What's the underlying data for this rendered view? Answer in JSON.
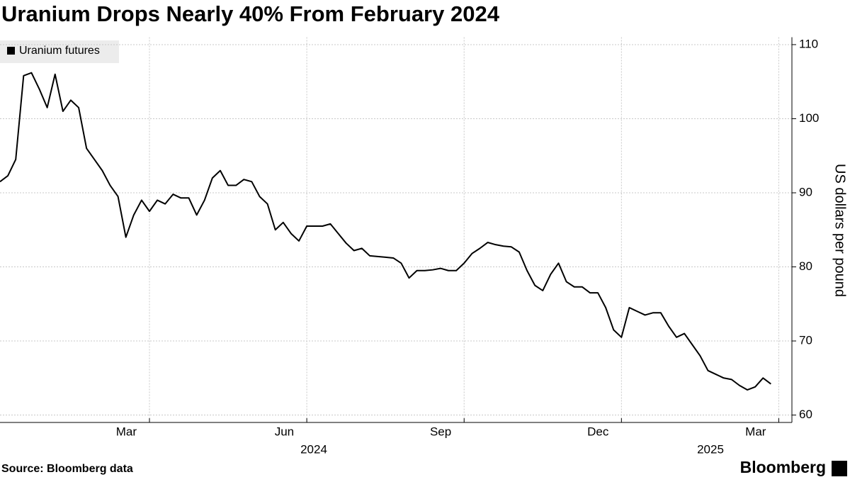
{
  "chart_data": {
    "type": "line",
    "title": "Uranium Drops Nearly 40% From February 2024",
    "source": "Source: Bloomberg data",
    "brand": "Bloomberg",
    "y_label": "US dollars per pound",
    "legend_position": "top-left",
    "grid": true,
    "xlim": [
      0,
      99.5
    ],
    "xticks": [
      {
        "value": 19,
        "label": "Mar"
      },
      {
        "value": 39,
        "label": "Jun"
      },
      {
        "value": 59,
        "label": "Sep"
      },
      {
        "value": 79,
        "label": "Dec"
      },
      {
        "value": 99,
        "label": "Mar"
      }
    ],
    "year_labels": [
      "2024",
      "2025"
    ],
    "ylim": [
      59,
      111
    ],
    "yticks": [
      60,
      70,
      80,
      90,
      100,
      110
    ],
    "series": [
      {
        "name": "Uranium futures",
        "color": "#000000",
        "values": [
          91.5,
          92.3,
          94.5,
          105.8,
          106.2,
          104,
          101.5,
          106,
          101,
          102.5,
          101.5,
          96,
          94.5,
          93,
          91,
          89.5,
          84,
          87,
          89,
          87.5,
          89,
          88.5,
          89.8,
          89.3,
          89.3,
          87,
          89,
          92,
          93,
          91,
          91,
          91.8,
          91.5,
          89.5,
          88.5,
          85,
          86,
          84.5,
          83.5,
          85.5,
          85.5,
          85.5,
          85.8,
          84.5,
          83.2,
          82.2,
          82.5,
          81.5,
          81.4,
          81.3,
          81.2,
          80.5,
          78.5,
          79.5,
          79.5,
          79.6,
          79.8,
          79.5,
          79.5,
          80.5,
          81.8,
          82.5,
          83.3,
          83,
          82.8,
          82.7,
          82,
          79.5,
          77.5,
          76.8,
          79,
          80.5,
          78,
          77.3,
          77.3,
          76.5,
          76.5,
          74.5,
          71.5,
          70.5,
          74.5,
          74,
          73.5,
          73.8,
          73.8,
          72,
          70.5,
          71,
          69.5,
          68,
          66,
          65.5,
          65,
          64.8,
          64,
          63.4,
          63.8,
          65,
          64.2
        ]
      }
    ]
  }
}
